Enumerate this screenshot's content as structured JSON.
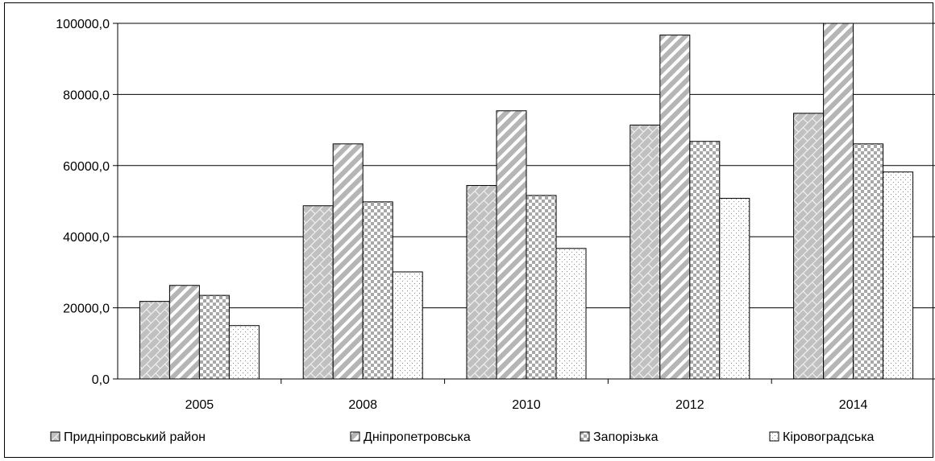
{
  "chart_data": {
    "type": "bar",
    "title": "",
    "xlabel": "",
    "ylabel": "",
    "categories": [
      "2005",
      "2008",
      "2010",
      "2012",
      "2014"
    ],
    "ylim": [
      0,
      100000
    ],
    "yticks": [
      "0,0",
      "20000,0",
      "40000,0",
      "60000,0",
      "80000,0",
      "100000,0"
    ],
    "grid": true,
    "legend_position": "bottom",
    "series": [
      {
        "name": "Придніпровський район",
        "values": [
          21800,
          48700,
          54400,
          71400,
          74700
        ],
        "pattern": "brick"
      },
      {
        "name": "Дніпропетровська",
        "values": [
          26300,
          66100,
          75400,
          96700,
          100000
        ],
        "pattern": "diagonal"
      },
      {
        "name": "Запорізька",
        "values": [
          23500,
          49800,
          51600,
          66800,
          66100
        ],
        "pattern": "checker"
      },
      {
        "name": "Кіровоградська",
        "values": [
          15000,
          30100,
          36700,
          50800,
          58200
        ],
        "pattern": "dots"
      }
    ]
  }
}
